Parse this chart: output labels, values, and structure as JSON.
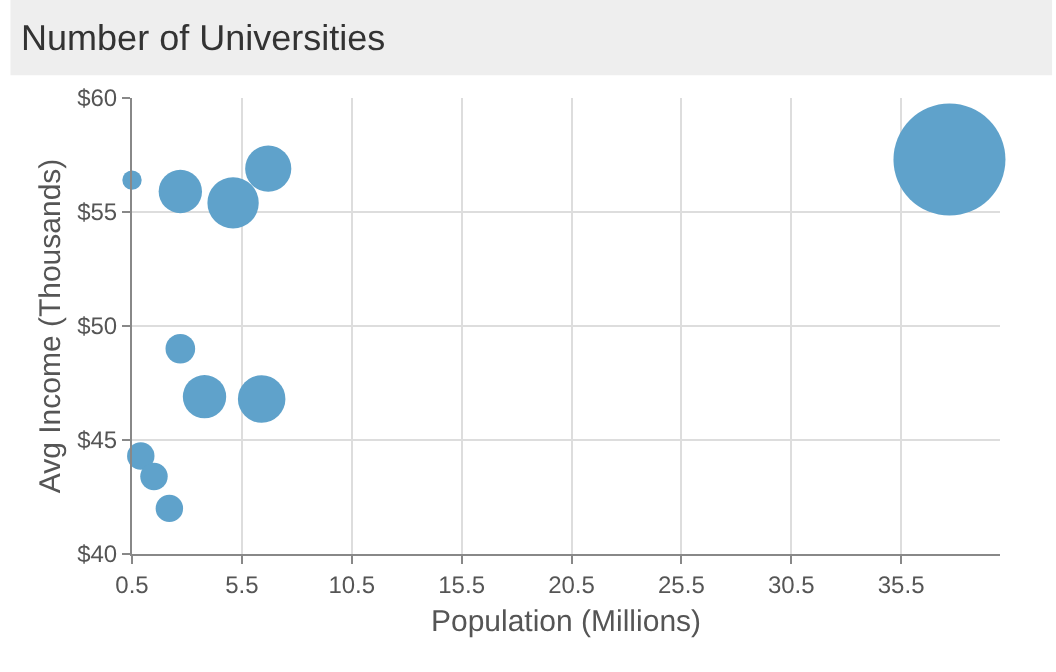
{
  "chart_data": {
    "type": "bubble",
    "title": "Number of Universities",
    "xlabel": "Population (Millions)",
    "ylabel": "Avg Income (Thousands)",
    "x": [
      0.5,
      2.7,
      5.1,
      6.7,
      2.7,
      3.8,
      6.4,
      0.9,
      1.5,
      2.2,
      37.7
    ],
    "values": [
      56.4,
      55.9,
      55.4,
      56.9,
      49.0,
      46.9,
      46.8,
      44.3,
      43.4,
      42.0,
      57.3
    ],
    "sizes": [
      0.03,
      0.15,
      0.21,
      0.17,
      0.07,
      0.15,
      0.18,
      0.06,
      0.06,
      0.06,
      1
    ],
    "color": "#5fa2cb",
    "xlim": [
      0.5,
      40
    ],
    "xticks": [
      0.5,
      5.5,
      10.5,
      15.5,
      20.5,
      25.5,
      30.5,
      35.5
    ],
    "ylim": [
      40,
      60
    ],
    "yticks": [
      {
        "value": 40,
        "label": "$40"
      },
      {
        "value": 45,
        "label": "$45"
      },
      {
        "value": 50,
        "label": "$50"
      },
      {
        "value": 55,
        "label": "$55"
      },
      {
        "value": 60,
        "label": "$60"
      }
    ],
    "grid": true,
    "legend": false
  }
}
